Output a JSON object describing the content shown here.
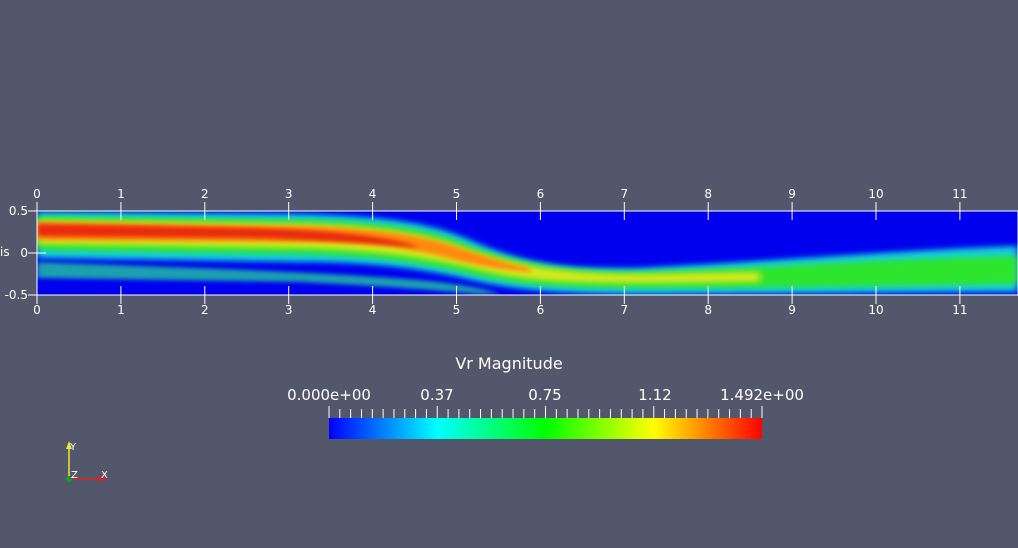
{
  "viewer": {
    "field": "Vr Magnitude",
    "colorbar": {
      "min_label": "0.000e+00",
      "mid_labels": [
        "0.37",
        "0.75",
        "1.12"
      ],
      "max_label": "1.492e+00",
      "min": 0,
      "max": 1.492
    },
    "axes": {
      "x_ticks": [
        "0",
        "1",
        "2",
        "3",
        "4",
        "5",
        "6",
        "7",
        "8",
        "9",
        "10",
        "11"
      ],
      "y_ticks": [
        "0.5",
        "0",
        "-0.5"
      ],
      "y_axis_label": "is",
      "x_range": [
        0,
        12
      ],
      "y_range": [
        -0.5,
        0.5
      ]
    },
    "orientation": {
      "y": "Y",
      "z": "Z",
      "x": "X"
    },
    "colors": {
      "background": "#52576b",
      "colormap": [
        "#0000ff",
        "#00ffff",
        "#00ff00",
        "#ffff00",
        "#ff0000"
      ]
    }
  }
}
